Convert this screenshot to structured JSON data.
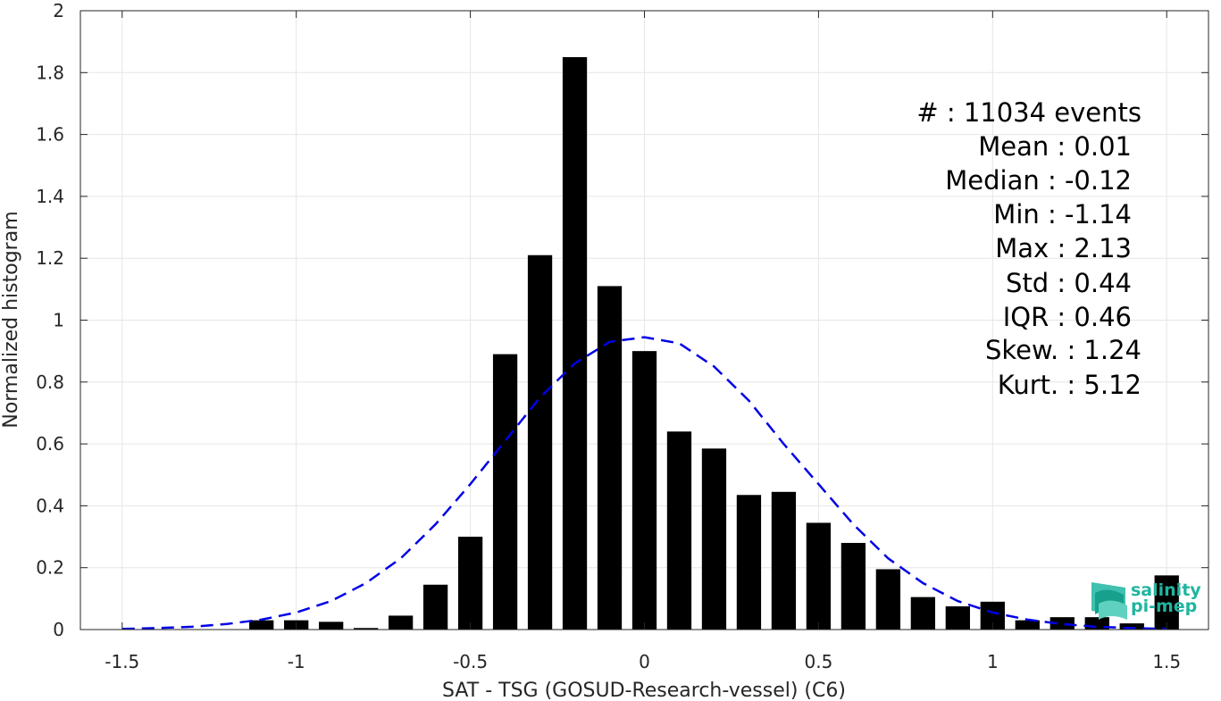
{
  "chart_data": {
    "type": "bar",
    "xlabel": "SAT - TSG (GOSUD-Research-vessel) (C6)",
    "ylabel": "Normalized histogram",
    "xlim": [
      -1.62,
      1.62
    ],
    "ylim": [
      0,
      2
    ],
    "xticks": [
      -1.5,
      -1,
      -0.5,
      0,
      0.5,
      1,
      1.5
    ],
    "xtick_labels": [
      "-1.5",
      "-1",
      "-0.5",
      "0",
      "0.5",
      "1",
      "1.5"
    ],
    "yticks": [
      0,
      0.2,
      0.4,
      0.6,
      0.8,
      1,
      1.2,
      1.4,
      1.6,
      1.8,
      2
    ],
    "ytick_labels": [
      "0",
      "0.2",
      "0.4",
      "0.6",
      "0.8",
      "1",
      "1.2",
      "1.4",
      "1.6",
      "1.8",
      "2"
    ],
    "grid": true,
    "bar_color": "#000000",
    "bar_width": 0.07,
    "bins": {
      "centers": [
        -1.1,
        -1.0,
        -0.9,
        -0.8,
        -0.7,
        -0.6,
        -0.5,
        -0.4,
        -0.3,
        -0.2,
        -0.1,
        0.0,
        0.1,
        0.2,
        0.3,
        0.4,
        0.5,
        0.6,
        0.7,
        0.8,
        0.9,
        1.0,
        1.1,
        1.2,
        1.3,
        1.4,
        1.5
      ],
      "values": [
        0.03,
        0.03,
        0.025,
        0.005,
        0.045,
        0.145,
        0.3,
        0.89,
        1.21,
        1.85,
        1.11,
        0.9,
        0.64,
        0.585,
        0.435,
        0.445,
        0.345,
        0.28,
        0.195,
        0.105,
        0.075,
        0.09,
        0.03,
        0.04,
        0.04,
        0.02,
        0.175
      ]
    },
    "fit_curve": {
      "name": "gaussian fit",
      "color": "#0000e6",
      "style": "dashed",
      "x": [
        -1.5,
        -1.4,
        -1.3,
        -1.2,
        -1.1,
        -1.0,
        -0.9,
        -0.8,
        -0.7,
        -0.6,
        -0.5,
        -0.4,
        -0.3,
        -0.2,
        -0.1,
        0.0,
        0.1,
        0.2,
        0.3,
        0.4,
        0.5,
        0.6,
        0.7,
        0.8,
        0.9,
        1.0,
        1.1,
        1.2,
        1.3,
        1.4,
        1.5
      ],
      "y": [
        0.002,
        0.005,
        0.009,
        0.018,
        0.032,
        0.055,
        0.092,
        0.15,
        0.23,
        0.34,
        0.47,
        0.61,
        0.75,
        0.86,
        0.93,
        0.945,
        0.925,
        0.85,
        0.74,
        0.6,
        0.47,
        0.34,
        0.23,
        0.15,
        0.092,
        0.055,
        0.032,
        0.018,
        0.009,
        0.005,
        0.002
      ]
    },
    "stats": [
      "#  : 11034 events",
      "Mean : 0.01",
      "Median : -0.12",
      "Min : -1.14",
      "Max : 2.13",
      "Std : 0.44",
      "IQR : 0.46",
      "Skew. : 1.24",
      "Kurt. : 5.12"
    ]
  },
  "logo": {
    "line1": "salinity",
    "line2": "pi-mep",
    "color": "#1fb5a0"
  }
}
